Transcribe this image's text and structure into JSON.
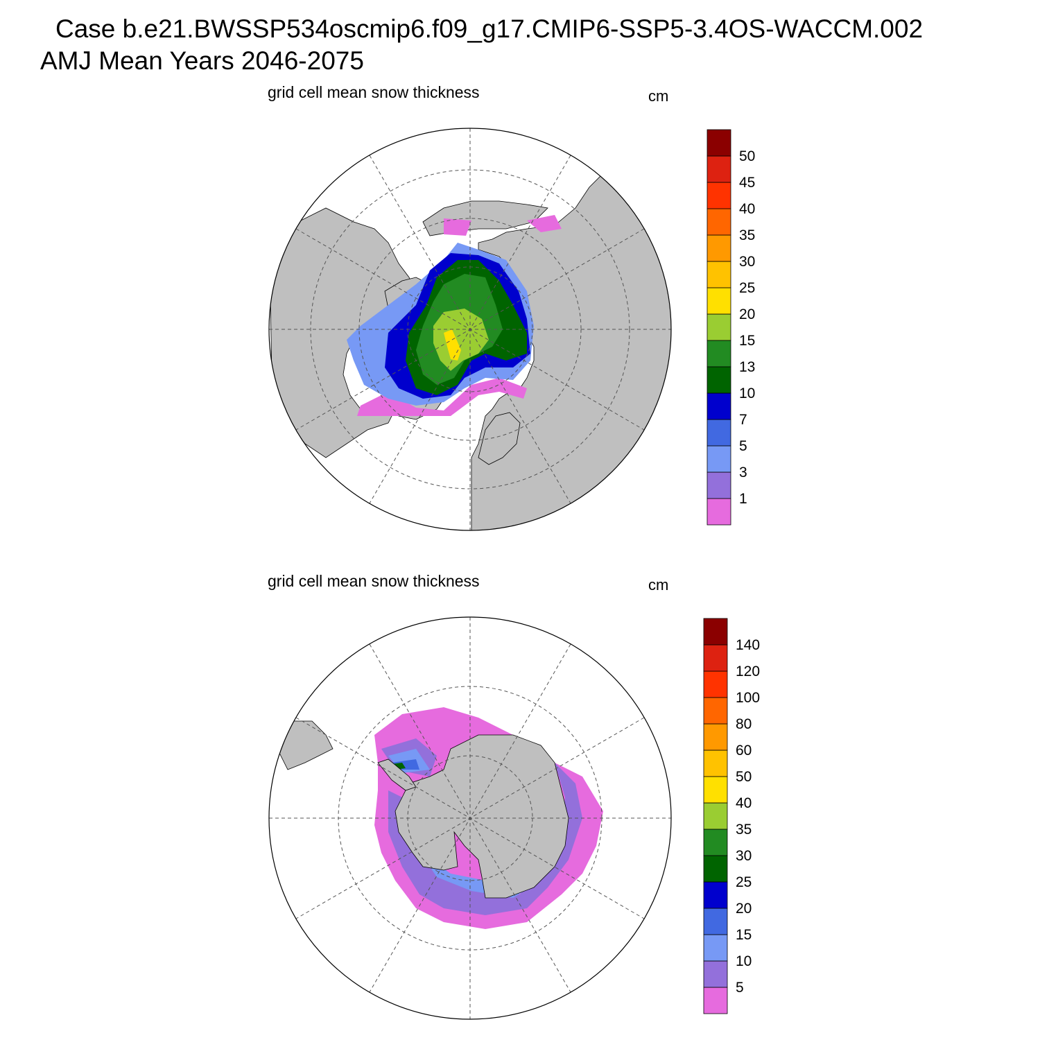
{
  "header": {
    "title_line1": "Case b.e21.BWSSP534oscmip6.f09_g17.CMIP6-SSP5-3.4OS-WACCM.002",
    "title_line2": "AMJ Mean   Years 2046-2075"
  },
  "colors": {
    "land": "#bfbfbf",
    "ocean": "#ffffff",
    "scale": [
      "#e66bde",
      "#9370db",
      "#7799f5",
      "#4169e1",
      "#0000cd",
      "#006400",
      "#228b22",
      "#9acd32",
      "#ffe000",
      "#ffc200",
      "#ff9900",
      "#ff6600",
      "#ff3300",
      "#dd2211",
      "#8b0000"
    ]
  },
  "panels": [
    {
      "id": "north",
      "title": "grid cell mean snow thickness",
      "unit": "cm",
      "hemisphere": "Arctic",
      "colorbar_labels": [
        "50",
        "45",
        "40",
        "35",
        "30",
        "25",
        "20",
        "15",
        "13",
        "10",
        "7",
        "5",
        "3",
        "1"
      ]
    },
    {
      "id": "south",
      "title": "grid cell mean snow thickness",
      "unit": "cm",
      "hemisphere": "Antarctic",
      "colorbar_labels": [
        "140",
        "120",
        "100",
        "80",
        "60",
        "50",
        "40",
        "35",
        "30",
        "25",
        "20",
        "15",
        "10",
        "5"
      ]
    }
  ]
}
